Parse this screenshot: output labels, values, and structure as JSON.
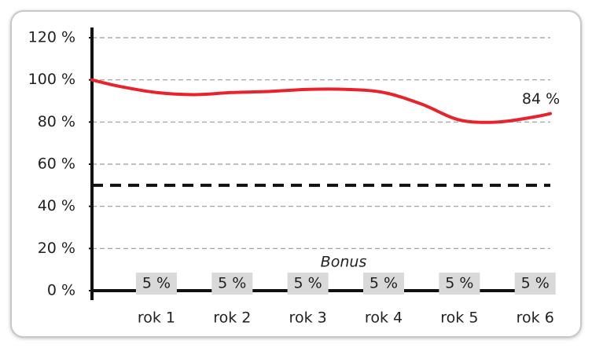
{
  "chart_data": {
    "type": "line",
    "ylim": [
      0,
      120
    ],
    "yticks": [
      {
        "value": 0,
        "label": "0 %"
      },
      {
        "value": 20,
        "label": "20 %"
      },
      {
        "value": 40,
        "label": "40 %"
      },
      {
        "value": 60,
        "label": "60 %"
      },
      {
        "value": 80,
        "label": "80 %"
      },
      {
        "value": 100,
        "label": "100 %"
      },
      {
        "value": 120,
        "label": "120 %"
      }
    ],
    "xlim": [
      0.15,
      6.2
    ],
    "xticks": [
      {
        "value": 1,
        "label": "rok 1"
      },
      {
        "value": 2,
        "label": "rok 2"
      },
      {
        "value": 3,
        "label": "rok 3"
      },
      {
        "value": 4,
        "label": "rok 4"
      },
      {
        "value": 5,
        "label": "rok 5"
      },
      {
        "value": 6,
        "label": "rok 6"
      }
    ],
    "grid": true,
    "series": [
      {
        "color": "#e8232b",
        "x": [
          0.15,
          0.5,
          1.0,
          1.5,
          2.0,
          2.5,
          3.0,
          3.5,
          4.0,
          4.5,
          5.0,
          5.5,
          6.0,
          6.2
        ],
        "values": [
          100,
          97,
          94,
          93,
          94,
          94.5,
          95.5,
          95.5,
          94,
          88.5,
          81,
          80,
          82.5,
          84
        ],
        "end_label": "84 %"
      }
    ],
    "threshold": {
      "value": 50,
      "color": "#111111"
    },
    "bonus": {
      "title": "Bonus",
      "values": [
        5,
        5,
        5,
        5,
        5,
        5
      ],
      "value_labels": [
        "5 %",
        "5 %",
        "5 %",
        "5 %",
        "5 %",
        "5 %"
      ],
      "color": "#d9d9d9"
    }
  }
}
